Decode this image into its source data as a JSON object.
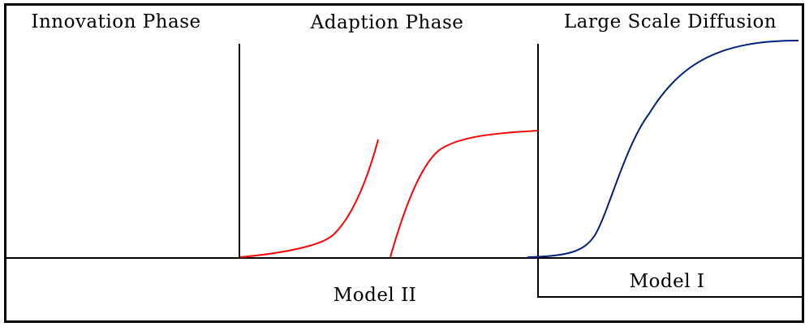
{
  "phases": {
    "innovation": "Innovation Phase",
    "adaption": "Adaption Phase",
    "diffusion": "Large Scale Diffusion"
  },
  "models": {
    "model_2": "Model II",
    "model_1": "Model I"
  },
  "colors": {
    "model_2_curve": "#ff0000",
    "model_1_curve": "#002080",
    "frame": "#000000"
  }
}
